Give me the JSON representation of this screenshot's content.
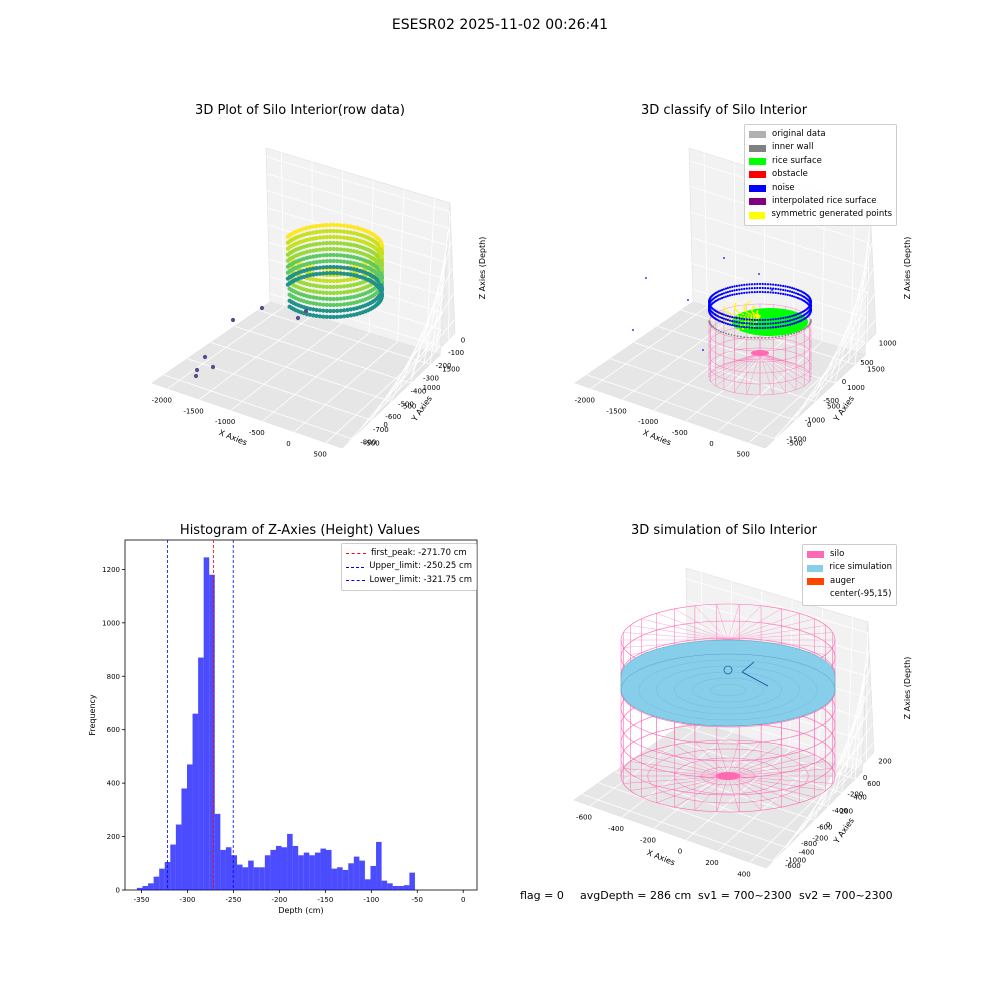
{
  "figure": {
    "title": "ESESR02 2025-11-02 00:26:41",
    "footer": {
      "flag": "flag = 0",
      "avg_depth": "avgDepth = 286 cm",
      "sv1": "sv1 = 700~2300",
      "sv2": "sv2 = 700~2300"
    }
  },
  "chart_data": [
    {
      "type": "scatter",
      "projection": "3d",
      "title": "3D Plot of Silo Interior(row data)",
      "xlabel": "X Axies",
      "ylabel": "Y Axies",
      "zlabel": "Z Axies (Depth)",
      "x_ticks": [
        "-2000",
        "-1500",
        "-1000",
        "-500",
        "0",
        "500"
      ],
      "y_ticks": [
        "-500",
        "0",
        "500",
        "1000",
        "1500"
      ],
      "z_ticks": [
        "0",
        "-100",
        "-200",
        "-300",
        "-400",
        "-500",
        "-600",
        "-700",
        "-800"
      ],
      "colormap": "viridis"
    },
    {
      "type": "scatter",
      "projection": "3d",
      "title": "3D classify of Silo Interior",
      "xlabel": "X Axies",
      "ylabel": "Y Axies",
      "zlabel": "Z Axies (Depth)",
      "x_ticks": [
        "-2000",
        "-1500",
        "-1000",
        "-500",
        "0",
        "500"
      ],
      "y_ticks": [
        "-500",
        "0",
        "500",
        "1000",
        "1500"
      ],
      "z_ticks": [
        "1000",
        "500",
        "0",
        "-500",
        "-1000",
        "-1500"
      ],
      "legend": [
        {
          "label": "original data",
          "color": "#b0b0b0"
        },
        {
          "label": "inner wall",
          "color": "#808080"
        },
        {
          "label": "rice surface",
          "color": "#00ff00"
        },
        {
          "label": "obstacle",
          "color": "#ff0000"
        },
        {
          "label": "noise",
          "color": "#0000ff"
        },
        {
          "label": "interpolated rice surface",
          "color": "#800080"
        },
        {
          "label": "symmetric generated points",
          "color": "#ffff00"
        }
      ],
      "legend_position": "top-right"
    },
    {
      "type": "bar",
      "title": "Histogram of Z-Axies (Height) Values",
      "xlabel": "Depth (cm)",
      "ylabel": "Frequency",
      "bar_color": "#0000ff",
      "bin_start": -355,
      "bin_width": 6.05,
      "values": [
        8,
        15,
        25,
        50,
        80,
        105,
        170,
        245,
        380,
        470,
        660,
        870,
        1245,
        1180,
        285,
        150,
        160,
        130,
        95,
        85,
        110,
        85,
        85,
        130,
        150,
        165,
        160,
        210,
        165,
        130,
        140,
        130,
        140,
        155,
        150,
        80,
        85,
        75,
        100,
        125,
        110,
        40,
        90,
        180,
        35,
        25,
        15,
        15,
        18,
        65
      ],
      "xlim": [
        -368,
        15
      ],
      "ylim": [
        0,
        1310
      ],
      "x_ticks": [
        -350,
        -300,
        -250,
        -200,
        -150,
        -100,
        -50,
        0
      ],
      "y_ticks": [
        0,
        200,
        400,
        600,
        800,
        1000,
        1200
      ],
      "reference_lines": [
        {
          "label": "first_peak: -271.70 cm",
          "x": -271.7,
          "color": "#ff0000"
        },
        {
          "label": "Upper_limit: -250.25 cm",
          "x": -250.25,
          "color": "#0000ff"
        },
        {
          "label": "Lower_limit: -321.75 cm",
          "x": -321.75,
          "color": "#0000ff"
        }
      ],
      "legend_position": "top-right"
    },
    {
      "type": "surface",
      "projection": "3d",
      "title": "3D simulation of Silo Interior",
      "xlabel": "X Axies",
      "ylabel": "Y Axies",
      "zlabel": "Z Axies (Depth)",
      "x_ticks": [
        "-600",
        "-400",
        "-200",
        "0",
        "200",
        "400"
      ],
      "y_ticks": [
        "-600",
        "-400",
        "-200",
        "0",
        "200",
        "400",
        "600"
      ],
      "z_ticks": [
        "200",
        "0",
        "-200",
        "-400",
        "-600",
        "-800",
        "-1000"
      ],
      "legend": [
        {
          "label": "silo",
          "color": "#ff69b4"
        },
        {
          "label": "rice simulation",
          "color": "#87ceeb"
        },
        {
          "label": "auger",
          "color": "#ff4500"
        },
        {
          "label": "center(-95,15)",
          "color": "#ffffff"
        }
      ],
      "legend_position": "top-right"
    }
  ]
}
